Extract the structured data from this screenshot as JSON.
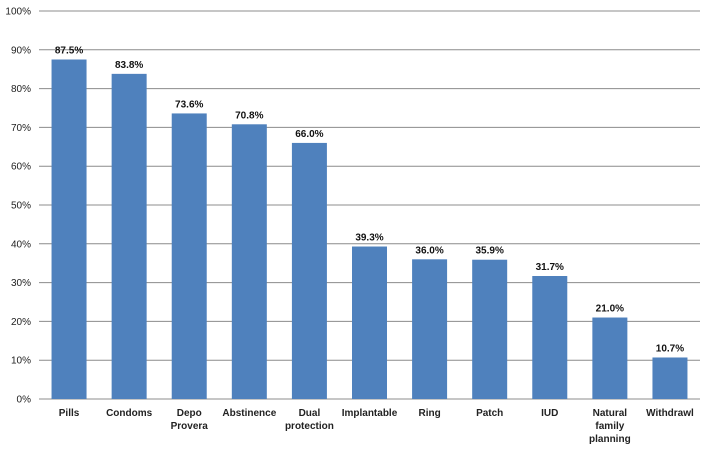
{
  "chart_data": {
    "type": "bar",
    "categories": [
      [
        "Pills"
      ],
      [
        "Condoms"
      ],
      [
        "Depo",
        "Provera"
      ],
      [
        "Abstinence"
      ],
      [
        "Dual",
        "protection"
      ],
      [
        "Implantable"
      ],
      [
        "Ring"
      ],
      [
        "Patch"
      ],
      [
        "IUD"
      ],
      [
        "Natural",
        "family",
        "planning"
      ],
      [
        "Withdrawl"
      ]
    ],
    "values": [
      87.5,
      83.8,
      73.6,
      70.8,
      66.0,
      39.3,
      36.0,
      35.9,
      31.7,
      21.0,
      10.7
    ],
    "data_labels": [
      "87.5%",
      "83.8%",
      "73.6%",
      "70.8%",
      "66.0%",
      "39.3%",
      "36.0%",
      "35.9%",
      "31.7%",
      "21.0%",
      "10.7%"
    ],
    "yticks": [
      0,
      10,
      20,
      30,
      40,
      50,
      60,
      70,
      80,
      90,
      100
    ],
    "ytick_labels": [
      "0%",
      "10%",
      "20%",
      "30%",
      "40%",
      "50%",
      "60%",
      "70%",
      "80%",
      "90%",
      "100%"
    ],
    "ylim": [
      0,
      100
    ],
    "grid": true,
    "bar_color": "#4f81bd",
    "grid_color": "#8c8c8c"
  }
}
